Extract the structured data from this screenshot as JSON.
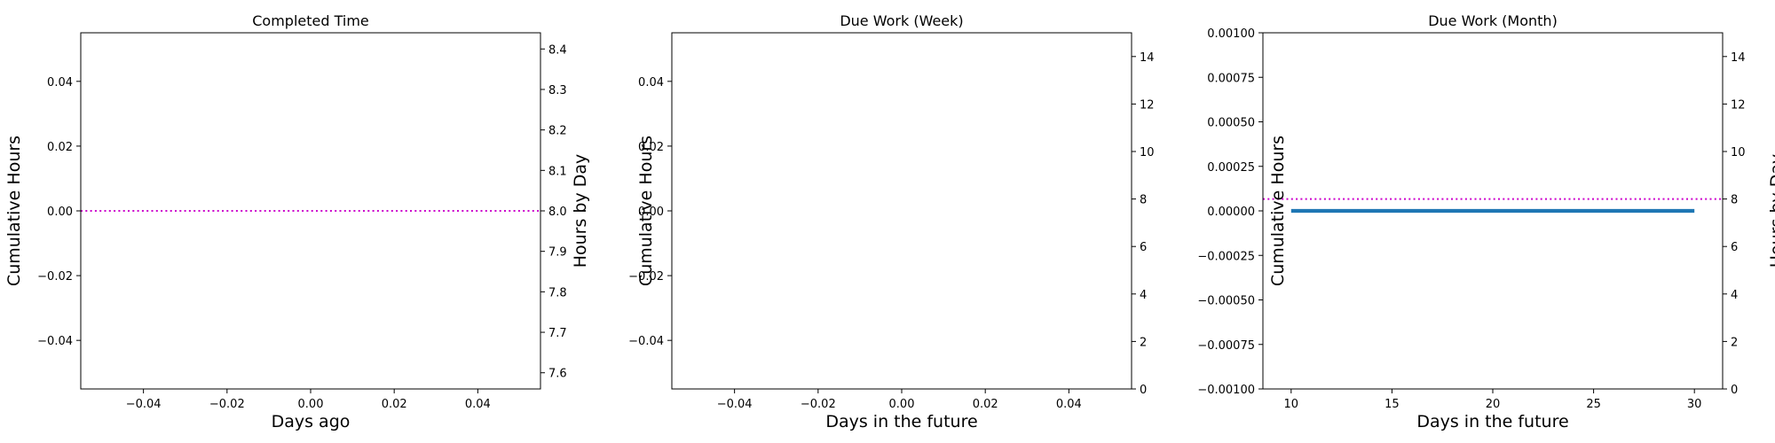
{
  "chart_data": [
    {
      "type": "line",
      "title": "Completed Time",
      "xlabel": "Days ago",
      "ylabel": "Cumulative Hours",
      "y2label": "Hours by Day",
      "xlim": [
        -0.055,
        0.055
      ],
      "ylim": [
        -0.055,
        0.055
      ],
      "y2lim": [
        7.56,
        8.44
      ],
      "xticks": [
        -0.04,
        -0.02,
        0.0,
        0.02,
        0.04
      ],
      "xtick_labels": [
        "−0.04",
        "−0.02",
        "0.00",
        "0.02",
        "0.04"
      ],
      "yticks": [
        -0.04,
        -0.02,
        0.0,
        0.02,
        0.04
      ],
      "ytick_labels": [
        "−0.04",
        "−0.02",
        "0.00",
        "0.02",
        "0.04"
      ],
      "y2ticks": [
        7.6,
        7.7,
        7.8,
        7.9,
        8.0,
        8.1,
        8.2,
        8.3,
        8.4
      ],
      "y2tick_labels": [
        "7.6",
        "7.7",
        "7.8",
        "7.9",
        "8.0",
        "8.1",
        "8.2",
        "8.3",
        "8.4"
      ],
      "series": [],
      "reference_line": {
        "axis": "y2",
        "value": 8,
        "style": "dotted",
        "color": "#cc00cc"
      },
      "grid": false
    },
    {
      "type": "line",
      "title": "Due Work (Week)",
      "xlabel": "Days in the future",
      "ylabel": "Cumulative Hours",
      "y2label": "",
      "xlim": [
        -0.055,
        0.055
      ],
      "ylim": [
        -0.055,
        0.055
      ],
      "y2lim": [
        0,
        15
      ],
      "xticks": [
        -0.04,
        -0.02,
        0.0,
        0.02,
        0.04
      ],
      "xtick_labels": [
        "−0.04",
        "−0.02",
        "0.00",
        "0.02",
        "0.04"
      ],
      "yticks": [
        -0.04,
        -0.02,
        0.0,
        0.02,
        0.04
      ],
      "ytick_labels": [
        "−0.04",
        "−0.02",
        "0.00",
        "0.02",
        "0.04"
      ],
      "y2ticks": [
        0,
        2,
        4,
        6,
        8,
        10,
        12,
        14
      ],
      "y2tick_labels": [
        "0",
        "2",
        "4",
        "6",
        "8",
        "10",
        "12",
        "14"
      ],
      "series": [],
      "reference_line": null,
      "grid": false
    },
    {
      "type": "line",
      "title": "Due Work (Month)",
      "xlabel": "Days in the future",
      "ylabel": "Cumulative Hours",
      "y2label": "Hours by Day",
      "xlim": [
        8.6,
        31.4
      ],
      "ylim": [
        -0.001,
        0.001
      ],
      "y2lim": [
        0,
        15
      ],
      "xticks": [
        10,
        15,
        20,
        25,
        30
      ],
      "xtick_labels": [
        "10",
        "15",
        "20",
        "25",
        "30"
      ],
      "yticks": [
        -0.001,
        -0.00075,
        -0.0005,
        -0.00025,
        0,
        0.00025,
        0.0005,
        0.00075,
        0.001
      ],
      "ytick_labels": [
        "−0.00100",
        "−0.00075",
        "−0.00050",
        "−0.00025",
        "0.00000",
        "0.00025",
        "0.00050",
        "0.00075",
        "0.00100"
      ],
      "y2ticks": [
        0,
        2,
        4,
        6,
        8,
        10,
        12,
        14
      ],
      "y2tick_labels": [
        "0",
        "2",
        "4",
        "6",
        "8",
        "10",
        "12",
        "14"
      ],
      "series": [
        {
          "axis": "y",
          "color": "#1f77b4",
          "x": [
            10,
            30
          ],
          "y": [
            0,
            0
          ]
        }
      ],
      "reference_line": {
        "axis": "y2",
        "value": 8,
        "style": "dotted",
        "color": "#cc00cc"
      },
      "grid": false
    }
  ]
}
